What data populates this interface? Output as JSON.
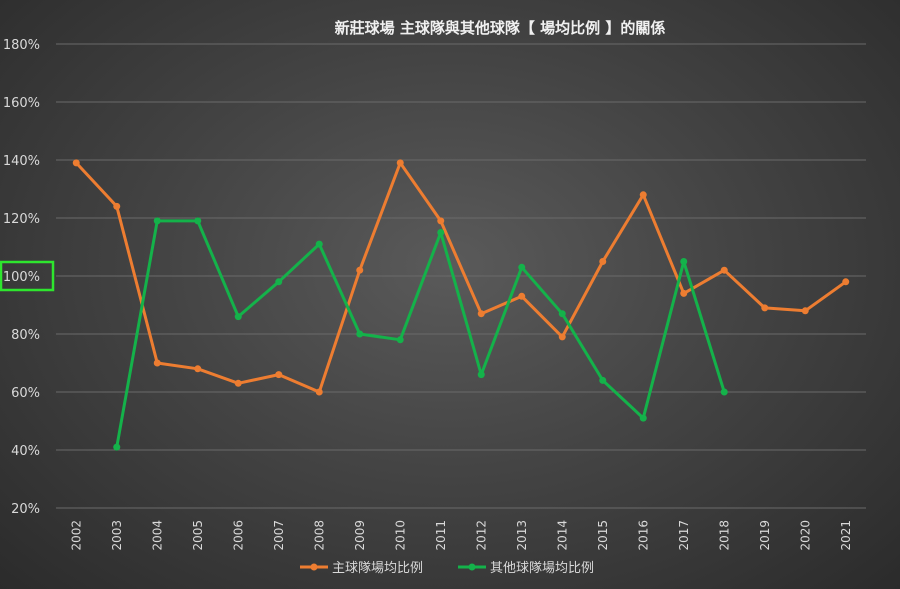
{
  "chart_data": {
    "type": "line",
    "title": "新莊球場 主球隊與其他球隊【 場均比例 】的關係",
    "x": [
      "2002",
      "2003",
      "2004",
      "2005",
      "2006",
      "2007",
      "2008",
      "2009",
      "2010",
      "2011",
      "2012",
      "2013",
      "2014",
      "2015",
      "2016",
      "2017",
      "2018",
      "2019",
      "2020",
      "2021"
    ],
    "y_ticks": [
      "20%",
      "40%",
      "60%",
      "80%",
      "100%",
      "120%",
      "140%",
      "160%",
      "180%"
    ],
    "ylim": [
      20,
      180
    ],
    "grid": true,
    "legend_position": "bottom",
    "highlighted_tick": "100%",
    "series": [
      {
        "name": "主球隊場均比例",
        "color": "#ed7d31",
        "values": [
          139,
          124,
          70,
          68,
          63,
          66,
          60,
          102,
          139,
          119,
          87,
          93,
          79,
          105,
          128,
          94,
          102,
          89,
          88,
          98
        ]
      },
      {
        "name": "其他球隊場均比例",
        "color": "#14b24a",
        "values": [
          null,
          41,
          119,
          119,
          86,
          98,
          111,
          80,
          78,
          115,
          66,
          103,
          87,
          64,
          51,
          105,
          60,
          null,
          null,
          null
        ]
      }
    ]
  }
}
